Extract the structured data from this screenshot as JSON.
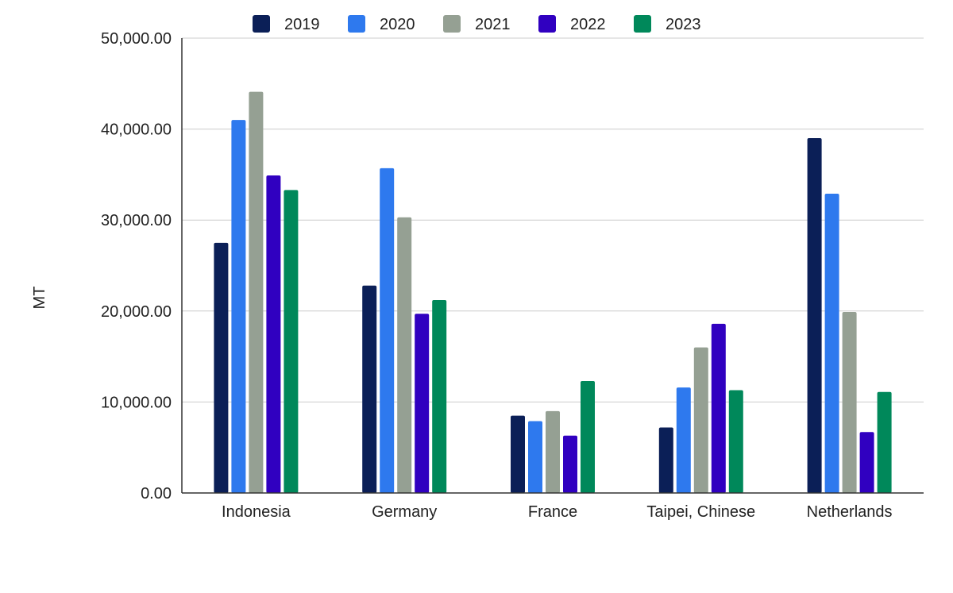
{
  "chart_data": {
    "type": "bar",
    "ylabel": "MT",
    "ylim": [
      0,
      50000
    ],
    "yticks": [
      0,
      10000,
      20000,
      30000,
      40000,
      50000
    ],
    "ytick_labels": [
      "0.00",
      "10,000.00",
      "20,000.00",
      "30,000.00",
      "40,000.00",
      "50,000.00"
    ],
    "grid": true,
    "legend_position": "top",
    "categories": [
      "Indonesia",
      "Germany",
      "France",
      "Taipei, Chinese",
      "Netherlands"
    ],
    "series": [
      {
        "name": "2019",
        "color": "#0b1f57",
        "values": [
          27500,
          22800,
          8500,
          7200,
          39000
        ]
      },
      {
        "name": "2020",
        "color": "#2e79ee",
        "values": [
          41000,
          35700,
          7900,
          11600,
          32900
        ]
      },
      {
        "name": "2021",
        "color": "#95a093",
        "values": [
          44100,
          30300,
          9000,
          16000,
          19900
        ]
      },
      {
        "name": "2022",
        "color": "#3000c0",
        "values": [
          34900,
          19700,
          6300,
          18600,
          6700
        ]
      },
      {
        "name": "2023",
        "color": "#00885a",
        "values": [
          33300,
          21200,
          12300,
          11300,
          11100
        ]
      }
    ]
  }
}
